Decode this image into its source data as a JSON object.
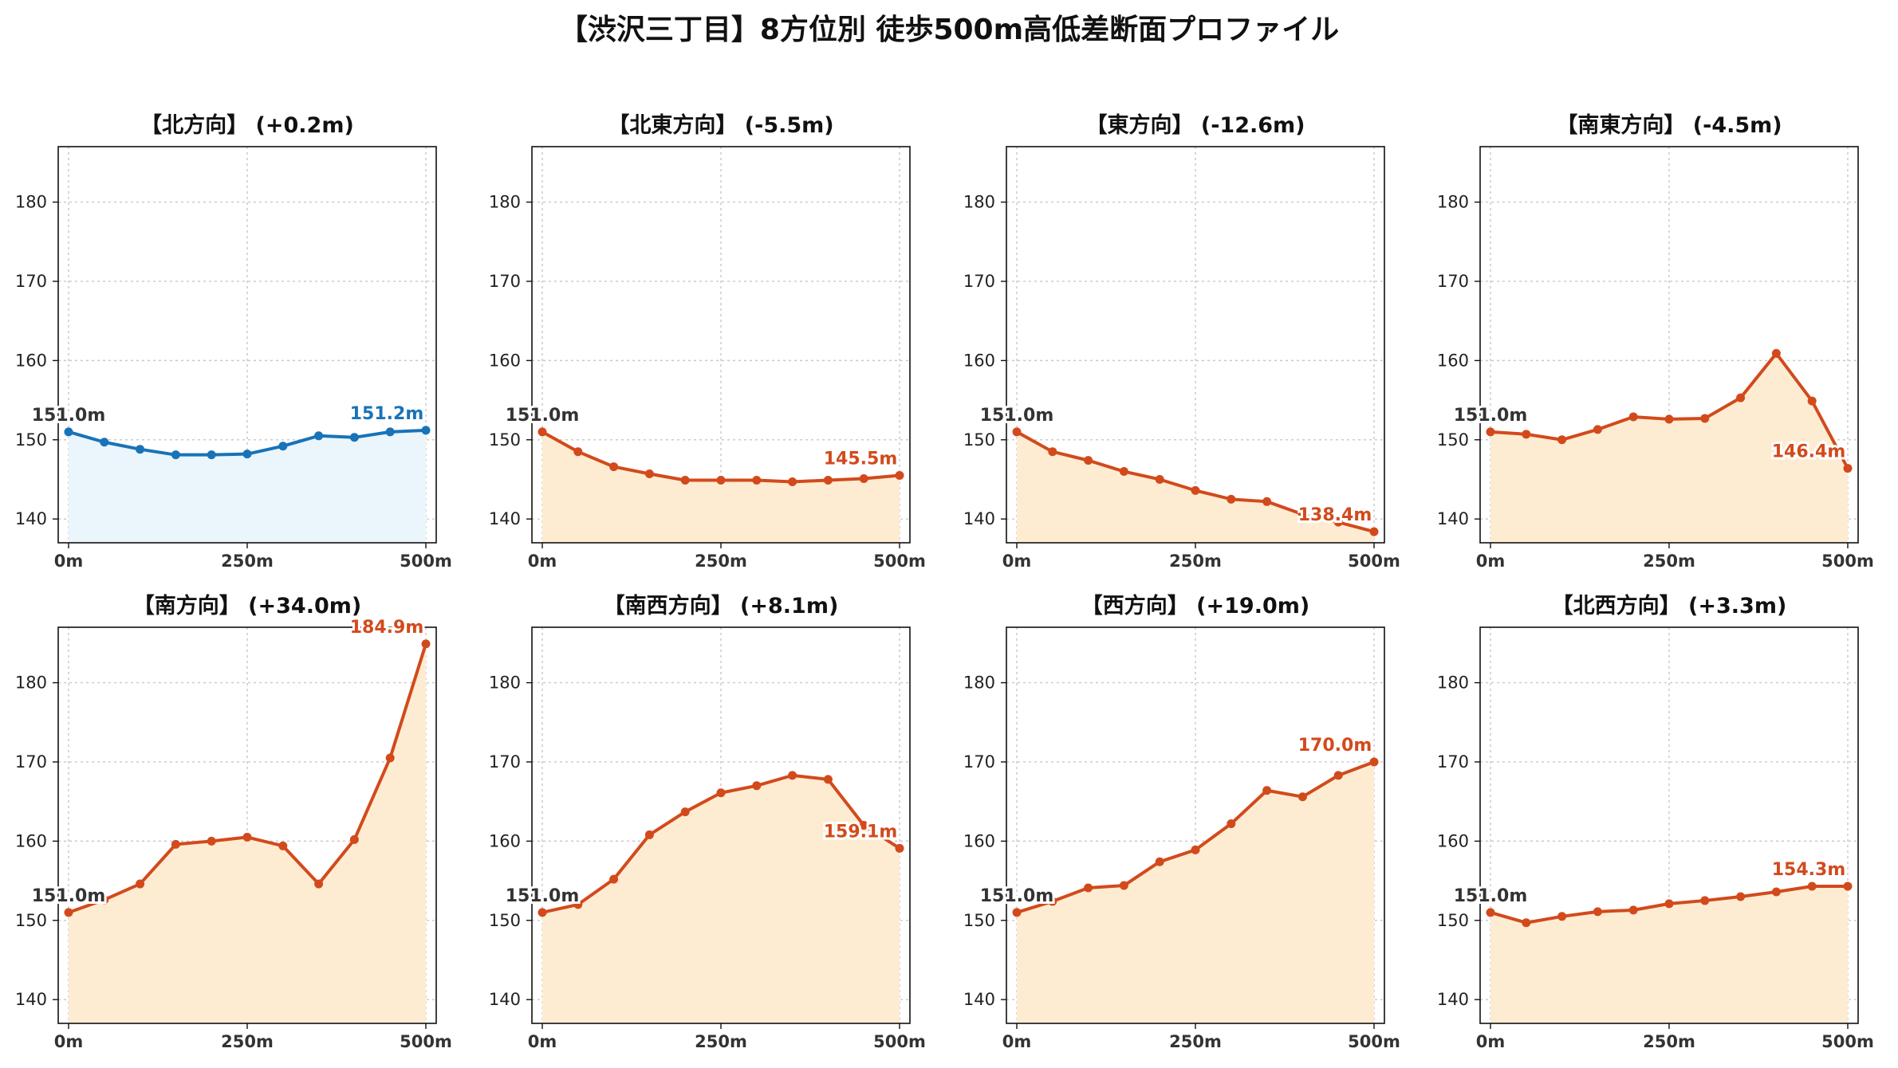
{
  "figure": {
    "title": "【渋沢三丁目】8方位別 徒歩500m高低差断面プロファイル"
  },
  "colors": {
    "up_line": "#d24a1c",
    "up_fill": "#feecd2",
    "flat_line": "#1873b8",
    "flat_fill": "#eaf6fc",
    "start_label": "#333333",
    "grid": "#c8c8c8"
  },
  "chart_data": [
    {
      "type": "area",
      "title": "【北方向】 (+0.2m)",
      "scheme": "flat",
      "x": [
        0,
        50,
        100,
        150,
        200,
        250,
        300,
        350,
        400,
        450,
        500
      ],
      "y": [
        151.0,
        149.7,
        148.8,
        148.1,
        148.1,
        148.2,
        149.2,
        150.5,
        150.3,
        151.0,
        151.2
      ],
      "start_label": "151.0m",
      "end_label": "151.2m",
      "ylim": [
        137,
        187
      ],
      "yticks": [
        140,
        150,
        160,
        170,
        180
      ],
      "xticks": [
        0,
        250,
        500
      ],
      "xticklabels": [
        "0m",
        "250m",
        "500m"
      ],
      "grid": true
    },
    {
      "type": "area",
      "title": "【北東方向】 (-5.5m)",
      "scheme": "up",
      "x": [
        0,
        50,
        100,
        150,
        200,
        250,
        300,
        350,
        400,
        450,
        500
      ],
      "y": [
        151.0,
        148.5,
        146.6,
        145.7,
        144.9,
        144.9,
        144.9,
        144.7,
        144.9,
        145.1,
        145.5
      ],
      "start_label": "151.0m",
      "end_label": "145.5m",
      "ylim": [
        137,
        187
      ],
      "yticks": [
        140,
        150,
        160,
        170,
        180
      ],
      "xticks": [
        0,
        250,
        500
      ],
      "xticklabels": [
        "0m",
        "250m",
        "500m"
      ],
      "grid": true
    },
    {
      "type": "area",
      "title": "【東方向】 (-12.6m)",
      "scheme": "up",
      "x": [
        0,
        50,
        100,
        150,
        200,
        250,
        300,
        350,
        400,
        450,
        500
      ],
      "y": [
        151.0,
        148.5,
        147.4,
        146.0,
        145.0,
        143.6,
        142.5,
        142.2,
        140.6,
        139.6,
        138.4
      ],
      "start_label": "151.0m",
      "end_label": "138.4m",
      "ylim": [
        137,
        187
      ],
      "yticks": [
        140,
        150,
        160,
        170,
        180
      ],
      "xticks": [
        0,
        250,
        500
      ],
      "xticklabels": [
        "0m",
        "250m",
        "500m"
      ],
      "grid": true
    },
    {
      "type": "area",
      "title": "【南東方向】 (-4.5m)",
      "scheme": "up",
      "x": [
        0,
        50,
        100,
        150,
        200,
        250,
        300,
        350,
        400,
        450,
        500
      ],
      "y": [
        151.0,
        150.7,
        150.0,
        151.3,
        152.9,
        152.6,
        152.7,
        155.3,
        160.9,
        154.9,
        146.4
      ],
      "start_label": "151.0m",
      "end_label": "146.4m",
      "ylim": [
        137,
        187
      ],
      "yticks": [
        140,
        150,
        160,
        170,
        180
      ],
      "xticks": [
        0,
        250,
        500
      ],
      "xticklabels": [
        "0m",
        "250m",
        "500m"
      ],
      "grid": true
    },
    {
      "type": "area",
      "title": "【南方向】 (+34.0m)",
      "scheme": "up",
      "x": [
        0,
        50,
        100,
        150,
        200,
        250,
        300,
        350,
        400,
        450,
        500
      ],
      "y": [
        151.0,
        152.6,
        154.6,
        159.6,
        160.0,
        160.5,
        159.4,
        154.6,
        160.2,
        170.5,
        184.9
      ],
      "start_label": "151.0m",
      "end_label": "184.9m",
      "ylim": [
        137,
        187
      ],
      "yticks": [
        140,
        150,
        160,
        170,
        180
      ],
      "xticks": [
        0,
        250,
        500
      ],
      "xticklabels": [
        "0m",
        "250m",
        "500m"
      ],
      "grid": true
    },
    {
      "type": "area",
      "title": "【南西方向】 (+8.1m)",
      "scheme": "up",
      "x": [
        0,
        50,
        100,
        150,
        200,
        250,
        300,
        350,
        400,
        450,
        500
      ],
      "y": [
        151.0,
        152.0,
        155.2,
        160.8,
        163.7,
        166.1,
        167.0,
        168.3,
        167.8,
        162.0,
        159.1
      ],
      "start_label": "151.0m",
      "end_label": "159.1m",
      "ylim": [
        137,
        187
      ],
      "yticks": [
        140,
        150,
        160,
        170,
        180
      ],
      "xticks": [
        0,
        250,
        500
      ],
      "xticklabels": [
        "0m",
        "250m",
        "500m"
      ],
      "grid": true
    },
    {
      "type": "area",
      "title": "【西方向】 (+19.0m)",
      "scheme": "up",
      "x": [
        0,
        50,
        100,
        150,
        200,
        250,
        300,
        350,
        400,
        450,
        500
      ],
      "y": [
        151.0,
        152.4,
        154.1,
        154.4,
        157.4,
        158.9,
        162.2,
        166.4,
        165.6,
        168.3,
        170.0
      ],
      "start_label": "151.0m",
      "end_label": "170.0m",
      "ylim": [
        137,
        187
      ],
      "yticks": [
        140,
        150,
        160,
        170,
        180
      ],
      "xticks": [
        0,
        250,
        500
      ],
      "xticklabels": [
        "0m",
        "250m",
        "500m"
      ],
      "grid": true
    },
    {
      "type": "area",
      "title": "【北西方向】 (+3.3m)",
      "scheme": "up",
      "x": [
        0,
        50,
        100,
        150,
        200,
        250,
        300,
        350,
        400,
        450,
        500
      ],
      "y": [
        151.0,
        149.7,
        150.5,
        151.1,
        151.3,
        152.1,
        152.5,
        153.0,
        153.6,
        154.3,
        154.3
      ],
      "start_label": "151.0m",
      "end_label": "154.3m",
      "ylim": [
        137,
        187
      ],
      "yticks": [
        140,
        150,
        160,
        170,
        180
      ],
      "xticks": [
        0,
        250,
        500
      ],
      "xticklabels": [
        "0m",
        "250m",
        "500m"
      ],
      "grid": true
    }
  ]
}
